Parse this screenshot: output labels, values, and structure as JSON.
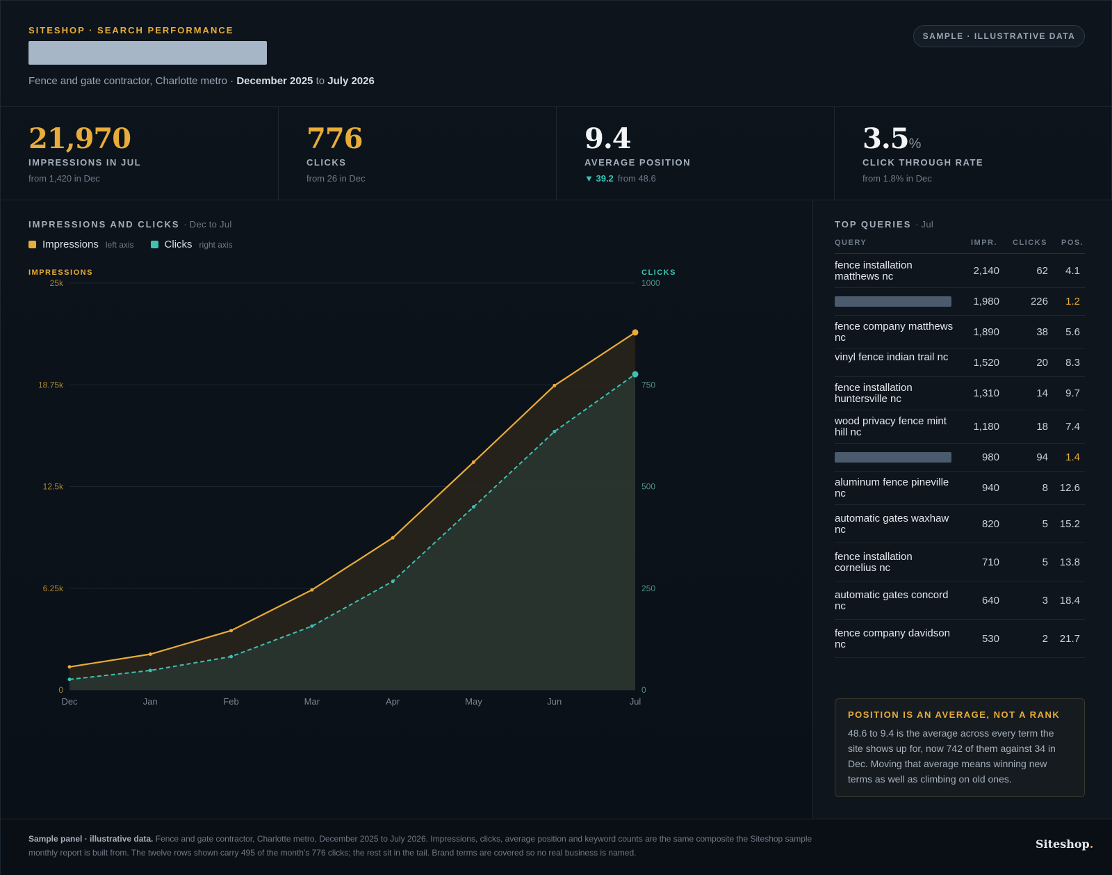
{
  "header": {
    "eyebrow": "SITESHOP · SEARCH PERFORMANCE",
    "subtitle_prefix": "Fence and gate contractor, Charlotte metro ·",
    "date_start": "December 2025",
    "date_to": "to",
    "date_end": "July 2026",
    "badge": "SAMPLE · ILLUSTRATIVE DATA"
  },
  "kpis": [
    {
      "value": "21,970",
      "label": "IMPRESSIONS IN JUL",
      "sub": "from 1,420 in Dec"
    },
    {
      "value": "776",
      "label": "CLICKS",
      "sub": "from 26 in Dec"
    },
    {
      "value": "9.4",
      "label": "AVERAGE POSITION",
      "delta": "▼ 39.2",
      "sub": "from 48.6"
    },
    {
      "value": "3.5",
      "unit": "%",
      "label": "CLICK THROUGH RATE",
      "sub": "from 1.8% in Dec"
    }
  ],
  "chart": {
    "title": "IMPRESSIONS AND CLICKS",
    "title_note": "· Dec to Jul",
    "legend": [
      {
        "name": "Impressions",
        "note": "left axis",
        "color": "#e8ac3a"
      },
      {
        "name": "Clicks",
        "note": "right axis",
        "color": "#3cc2b4"
      }
    ]
  },
  "chart_data": {
    "type": "line",
    "categories": [
      "Dec",
      "Jan",
      "Feb",
      "Mar",
      "Apr",
      "May",
      "Jun",
      "Jul"
    ],
    "series": [
      {
        "name": "Impressions",
        "axis": "left",
        "values": [
          1420,
          2200,
          3650,
          6150,
          9350,
          14000,
          18700,
          21970
        ],
        "color": "#e8ac3a",
        "style": "solid"
      },
      {
        "name": "Clicks",
        "axis": "right",
        "values": [
          26,
          48,
          82,
          157,
          267,
          450,
          635,
          776
        ],
        "color": "#3cc2b4",
        "style": "dashed"
      }
    ],
    "left_axis": {
      "label": "IMPRESSIONS",
      "ylim": [
        0,
        25000
      ],
      "ticks": [
        "0",
        "6.25k",
        "12.5k",
        "18.75k",
        "25k"
      ]
    },
    "right_axis": {
      "label": "CLICKS",
      "ylim": [
        0,
        1000
      ],
      "ticks": [
        "0",
        "250",
        "500",
        "750",
        "1000"
      ]
    },
    "grid": true
  },
  "queries": {
    "title": "TOP QUERIES",
    "title_note": "· Jul",
    "columns": [
      "QUERY",
      "IMPR.",
      "CLICKS",
      "POS."
    ],
    "rows": [
      {
        "query": "fence installation matthews nc",
        "impr": "2,140",
        "clicks": "62",
        "pos": "4.1"
      },
      {
        "query": "",
        "redacted": true,
        "impr": "1,980",
        "clicks": "226",
        "pos": "1.2",
        "highlight": true
      },
      {
        "query": "fence company matthews nc",
        "impr": "1,890",
        "clicks": "38",
        "pos": "5.6"
      },
      {
        "query": "vinyl fence indian trail nc",
        "impr": "1,520",
        "clicks": "20",
        "pos": "8.3"
      },
      {
        "query": "fence installation huntersville nc",
        "impr": "1,310",
        "clicks": "14",
        "pos": "9.7"
      },
      {
        "query": "wood privacy fence mint hill nc",
        "impr": "1,180",
        "clicks": "18",
        "pos": "7.4"
      },
      {
        "query": "",
        "redacted": true,
        "impr": "980",
        "clicks": "94",
        "pos": "1.4",
        "highlight": true
      },
      {
        "query": "aluminum fence pineville nc",
        "impr": "940",
        "clicks": "8",
        "pos": "12.6"
      },
      {
        "query": "automatic gates waxhaw nc",
        "impr": "820",
        "clicks": "5",
        "pos": "15.2"
      },
      {
        "query": "fence installation cornelius nc",
        "impr": "710",
        "clicks": "5",
        "pos": "13.8"
      },
      {
        "query": "automatic gates concord nc",
        "impr": "640",
        "clicks": "3",
        "pos": "18.4"
      },
      {
        "query": "fence company davidson nc",
        "impr": "530",
        "clicks": "2",
        "pos": "21.7"
      }
    ]
  },
  "note": {
    "title": "POSITION IS AN AVERAGE, NOT A RANK",
    "text": "48.6 to 9.4 is the average across every term the site shows up for, now 742 of them against 34 in Dec. Moving that average means winning new terms as well as climbing on old ones."
  },
  "footer": {
    "lead": "Sample panel · illustrative data.",
    "text": "Fence and gate contractor, Charlotte metro, December 2025 to July 2026. Impressions, clicks, average position and keyword counts are the same composite the Siteshop sample monthly report is built from. The twelve rows shown carry 495 of the month's 776 clicks; the rest sit in the tail. Brand terms are covered so no real business is named.",
    "brand": "Siteshop",
    "brand_dot": "."
  }
}
